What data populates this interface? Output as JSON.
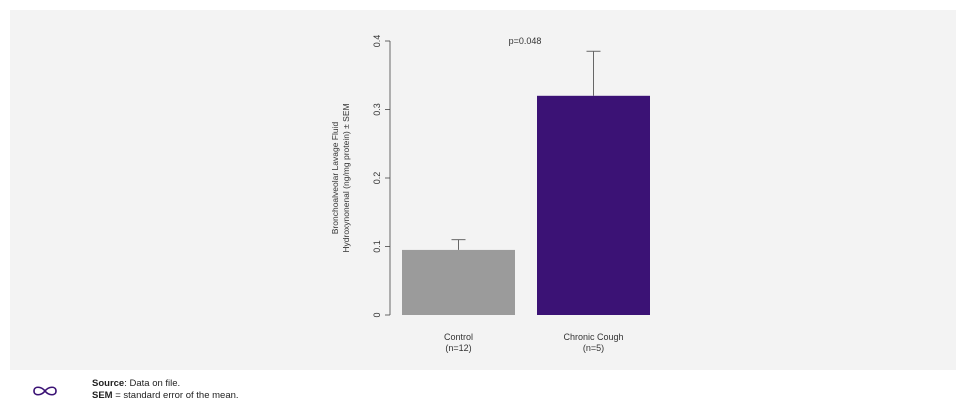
{
  "chart_data": {
    "type": "bar",
    "categories": [
      "Control\n(n=12)",
      "Chronic Cough\n(n=5)"
    ],
    "values": [
      0.095,
      0.32
    ],
    "error": [
      0.015,
      0.065
    ],
    "colors": [
      "#9b9b9b",
      "#3b1275"
    ],
    "ylabel_line1": "Bronchoalveolar Lavage Fluid",
    "ylabel_line2": "Hydroxynonenal (ng/mg protein) ± SEM",
    "ylim": [
      0,
      0.4
    ],
    "yticks": [
      "0",
      "0.1",
      "0.2",
      "0.3",
      "0.4"
    ],
    "annotation": "p=0.048",
    "grid": false
  },
  "footer": {
    "logo_icon": "infinity-logo-icon",
    "source_label": "Source",
    "source_text": ": Data on file.",
    "sem_label": "SEM",
    "sem_text": " = standard error of the mean."
  }
}
